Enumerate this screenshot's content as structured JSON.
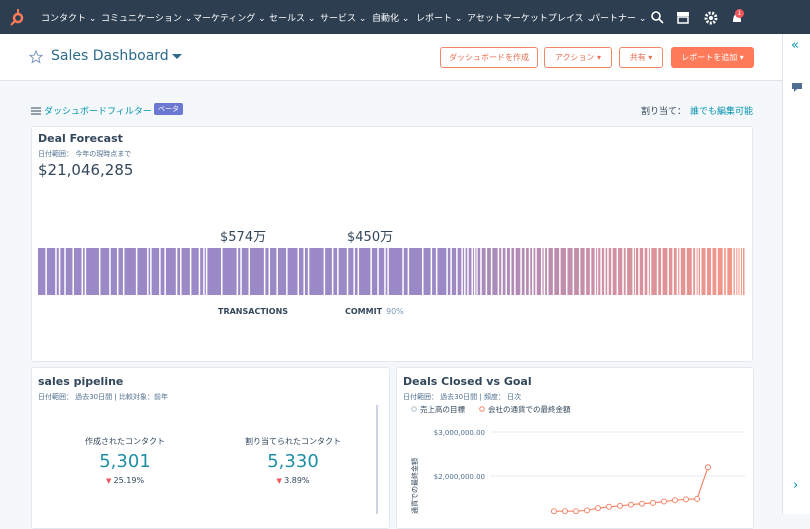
{
  "nav": {
    "items": [
      "コンタクト",
      "コミュニケーション",
      "マーケティング",
      "セールス",
      "サービス",
      "自動化",
      "レポート",
      "アセットマーケットプレイス",
      "パートナー"
    ],
    "badge": "1"
  },
  "header": {
    "title": "Sales Dashboard",
    "buttons": [
      "ダッシュボードを作成",
      "アクション",
      "共有",
      "レポートを追加"
    ]
  },
  "filter": {
    "label": "ダッシュボードフィルター",
    "badge": "ベータ",
    "assign_label": "割り当て：",
    "assign_value": "誰でも編集可能"
  },
  "deal_forecast": {
    "title": "Deal Forecast",
    "date_range": "日付範囲： 今年の現時点まで",
    "total": "$21,046,285",
    "segments": [
      {
        "amount": "$574万",
        "label": "TRANSACTIONS"
      },
      {
        "amount": "$450万",
        "label": "COMMIT",
        "pct": "90%"
      }
    ]
  },
  "pipeline": {
    "title": "sales pipeline",
    "meta": [
      "日付範囲： 過去30日間",
      "比較対象：前年"
    ],
    "kpis": [
      {
        "label": "作成されたコンタクト",
        "value": "5,301",
        "change": "25.19%"
      },
      {
        "label": "割り当てられたコンタクト",
        "value": "5,330",
        "change": "3.89%"
      }
    ]
  },
  "deals_meta": [
    "日付範囲： 過去30日間",
    "頻度： 日次"
  ],
  "chart_data": {
    "type": "line",
    "title": "Deals Closed vs Goal",
    "ylabel": "通貨での最終金額",
    "ylim": [
      1100000,
      3200000
    ],
    "yticks": [
      {
        "value": 2000000,
        "label": "$2,000,000.00"
      },
      {
        "value": 3000000,
        "label": "$3,000,000.00"
      }
    ],
    "grid": true,
    "series": [
      {
        "name": "売上高の目標",
        "color": "#b0bec8",
        "values": [
          null,
          null,
          null,
          null,
          null,
          null,
          null,
          null,
          null,
          null,
          null,
          null,
          null,
          null,
          null
        ]
      },
      {
        "name": "会社の通貨での最終金額",
        "color": "#f2866b",
        "values": [
          1200000,
          1200000,
          1200000,
          1220000,
          1270000,
          1300000,
          1320000,
          1350000,
          1370000,
          1390000,
          1420000,
          1450000,
          1470000,
          1480000,
          2200000
        ]
      }
    ]
  }
}
